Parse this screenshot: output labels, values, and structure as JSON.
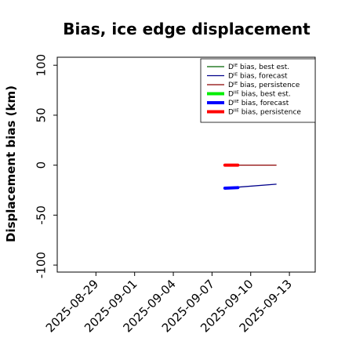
{
  "chart_data": {
    "type": "line",
    "title": "Bias, ice edge displacement",
    "xlabel": "",
    "ylabel": "Displacement bias (km)",
    "xlim": [
      "2025-08-26",
      "2025-09-15"
    ],
    "ylim": [
      -107,
      108
    ],
    "x_ticks": [
      {
        "label": "2025-08-29",
        "date": "2025-08-29",
        "color": "#000000"
      },
      {
        "label": "2025-09-01",
        "date": "2025-09-01",
        "color": "#000000"
      },
      {
        "label": "2025-09-04",
        "date": "2025-09-04",
        "color": "#228b22"
      },
      {
        "label": "2025-09-07",
        "date": "2025-09-07",
        "color": "#000000"
      },
      {
        "label": "2025-09-10",
        "date": "2025-09-10",
        "color": "#000000"
      },
      {
        "label": "2025-09-13",
        "date": "2025-09-13",
        "color": "#000000"
      }
    ],
    "y_ticks": [
      -100,
      -50,
      0,
      50,
      100
    ],
    "grid": false,
    "legend_position": "top-right",
    "series": [
      {
        "name": "Dᴵᴱ bias, best est.",
        "color": "#006400",
        "linewidth": "thin",
        "x": [],
        "y": []
      },
      {
        "name": "Dᴵᴱ bias, forecast",
        "color": "#00008b",
        "linewidth": "thin",
        "x": [
          "2025-09-08",
          "2025-09-09",
          "2025-09-12"
        ],
        "y": [
          -23,
          -22,
          -19
        ]
      },
      {
        "name": "Dᴵᴱ bias, persistence",
        "color": "#8b0000",
        "linewidth": "thin",
        "x": [
          "2025-09-08",
          "2025-09-09",
          "2025-09-12"
        ],
        "y": [
          0,
          0,
          0
        ]
      },
      {
        "name": "Dᴵᴵᴱ bias, best est.",
        "color": "#00ee00",
        "linewidth": "thick",
        "x": [],
        "y": []
      },
      {
        "name": "Dᴵᴵᴱ bias, forecast",
        "color": "#0000ff",
        "linewidth": "thick",
        "x": [
          "2025-09-08",
          "2025-09-09"
        ],
        "y": [
          -23,
          -22.5
        ]
      },
      {
        "name": "Dᴵᴵᴱ bias, persistence",
        "color": "#ff0000",
        "linewidth": "thick",
        "x": [
          "2025-09-08",
          "2025-09-09"
        ],
        "y": [
          0,
          0
        ]
      }
    ]
  }
}
